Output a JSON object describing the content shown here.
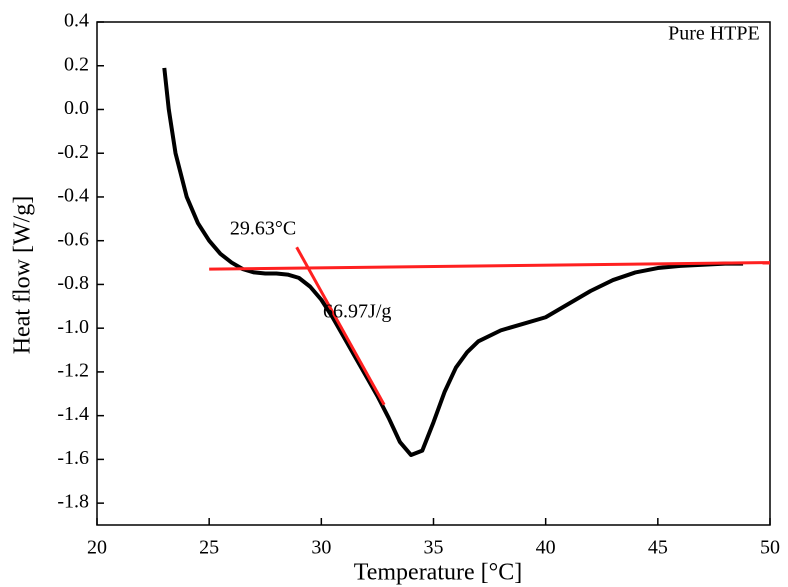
{
  "chart_data": {
    "type": "line",
    "x_label": "Temperature [°C]",
    "y_label": "Heat flow [W/g]",
    "xlim": [
      20,
      50
    ],
    "xticks": [
      20,
      25,
      30,
      35,
      40,
      45,
      50
    ],
    "ylim": [
      -1.9,
      0.4
    ],
    "yticks": [
      0.4,
      0.2,
      {
        "value": 0,
        "label": "0.0"
      },
      -0.2,
      -0.4,
      -0.6,
      -0.8,
      {
        "value": -1,
        "label": "-1.0"
      },
      -1.2,
      -1.4,
      -1.6,
      -1.8
    ],
    "series": [
      {
        "color": "#000000",
        "x": [
          23.0,
          23.2,
          23.5,
          24,
          24.5,
          25,
          25.5,
          26,
          26.5,
          27,
          27.5,
          28,
          28.5,
          29,
          29.5,
          30,
          30.5,
          31,
          31.5,
          32,
          32.5,
          33,
          33.5,
          34,
          34.5,
          35,
          35.5,
          36,
          36.5,
          37,
          38,
          39,
          40,
          41,
          42,
          43,
          44,
          45,
          46,
          47,
          48,
          48.8
        ],
        "values": [
          0.19,
          0.0,
          -0.2,
          -0.4,
          -0.52,
          -0.6,
          -0.66,
          -0.7,
          -0.73,
          -0.745,
          -0.75,
          -0.75,
          -0.755,
          -0.77,
          -0.81,
          -0.87,
          -0.95,
          -1.04,
          -1.13,
          -1.22,
          -1.31,
          -1.41,
          -1.52,
          -1.58,
          -1.56,
          -1.43,
          -1.29,
          -1.18,
          -1.11,
          -1.06,
          -1.01,
          -0.98,
          -0.95,
          -0.89,
          -0.83,
          -0.78,
          -0.745,
          -0.725,
          -0.715,
          -0.71,
          -0.705,
          -0.705
        ]
      },
      {
        "color": "#ff2020",
        "x": [
          25,
          50
        ],
        "values": [
          -0.73,
          -0.7
        ]
      },
      {
        "color": "#ff2020",
        "x": [
          28.9,
          32.8
        ],
        "values": [
          -0.63,
          -1.35
        ]
      }
    ],
    "annotations": [
      {
        "text": "29.63°C",
        "x": 27.4,
        "y": -0.55
      },
      {
        "text": "66.97J/g",
        "x": 31.6,
        "y": -0.93
      },
      {
        "text": "Pure HTPE",
        "x": 47.5,
        "y": 0.34
      }
    ]
  }
}
